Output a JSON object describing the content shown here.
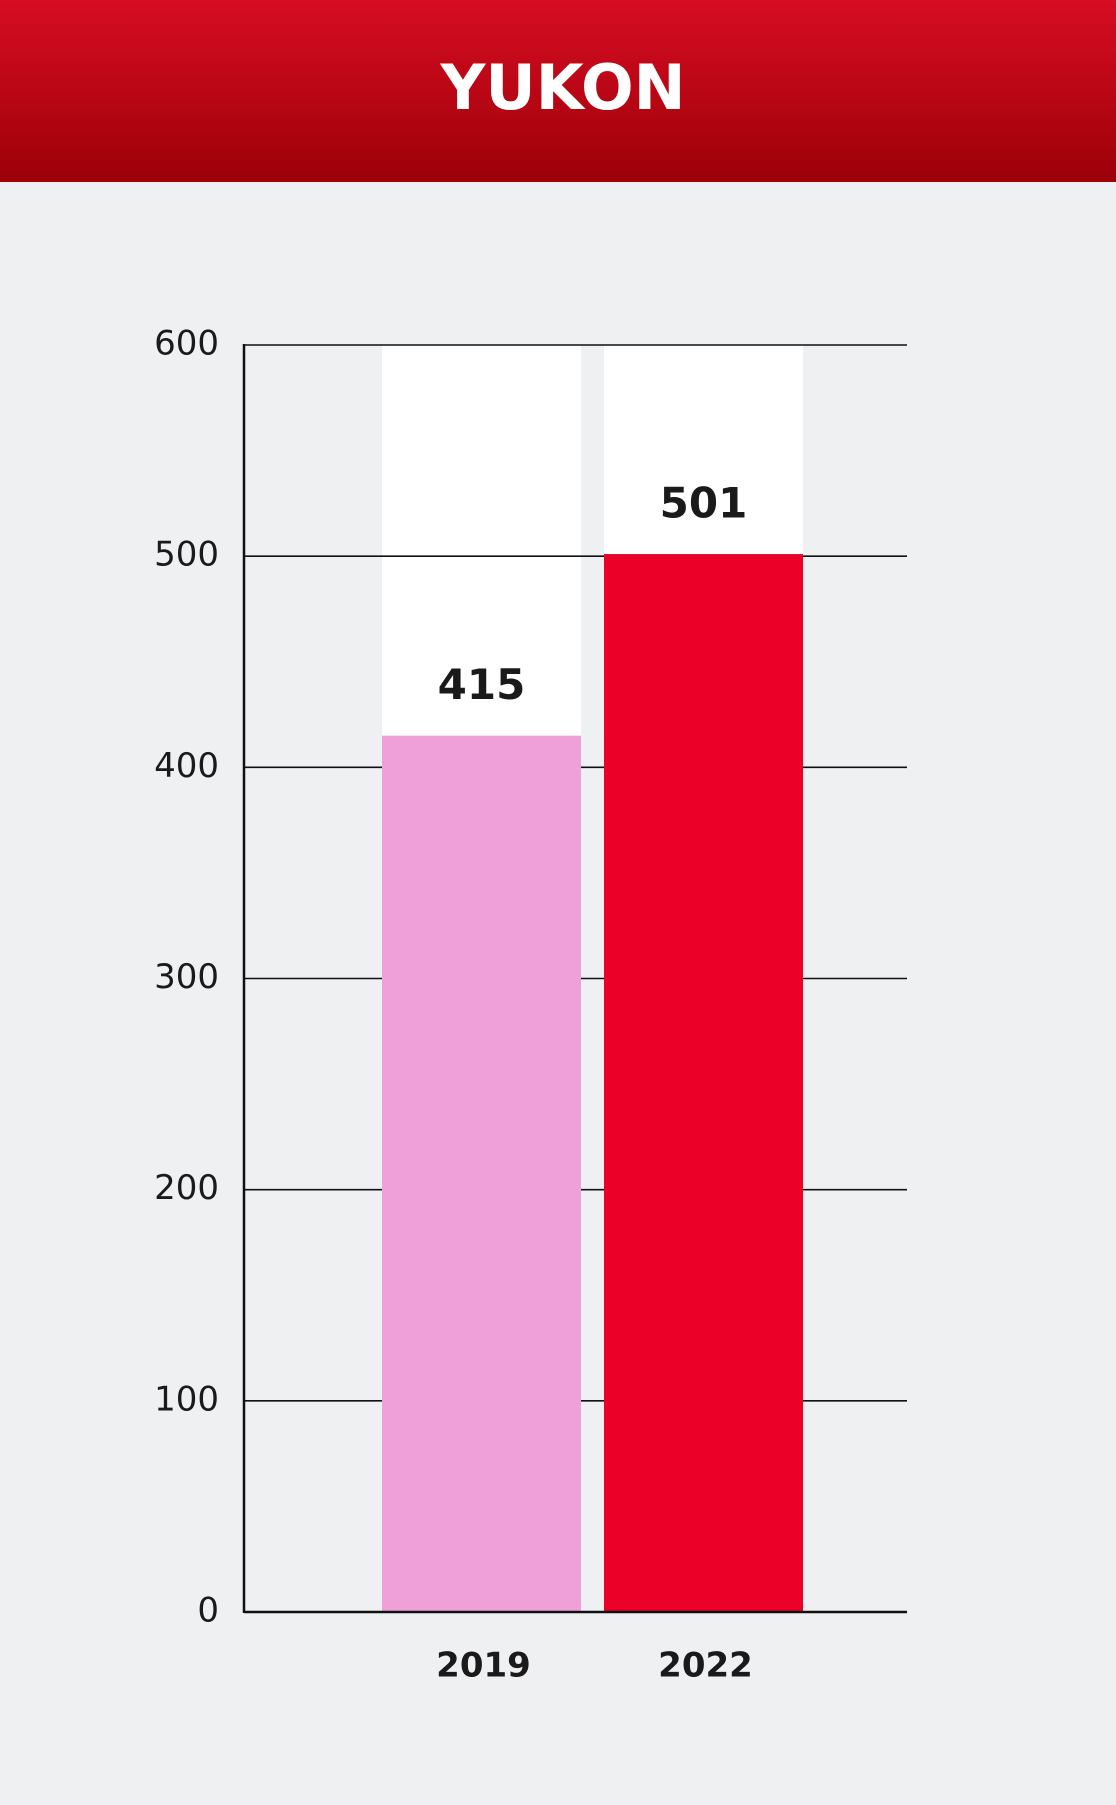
{
  "chart_data": {
    "type": "bar",
    "title": "YUKON",
    "categories": [
      "2019",
      "2022"
    ],
    "values": [
      415,
      501
    ],
    "colors": [
      "#f0a0d8",
      "#eb0028"
    ],
    "ylim": [
      0,
      600
    ],
    "yticks": [
      0,
      100,
      200,
      300,
      400,
      500,
      600
    ],
    "grid": true
  }
}
